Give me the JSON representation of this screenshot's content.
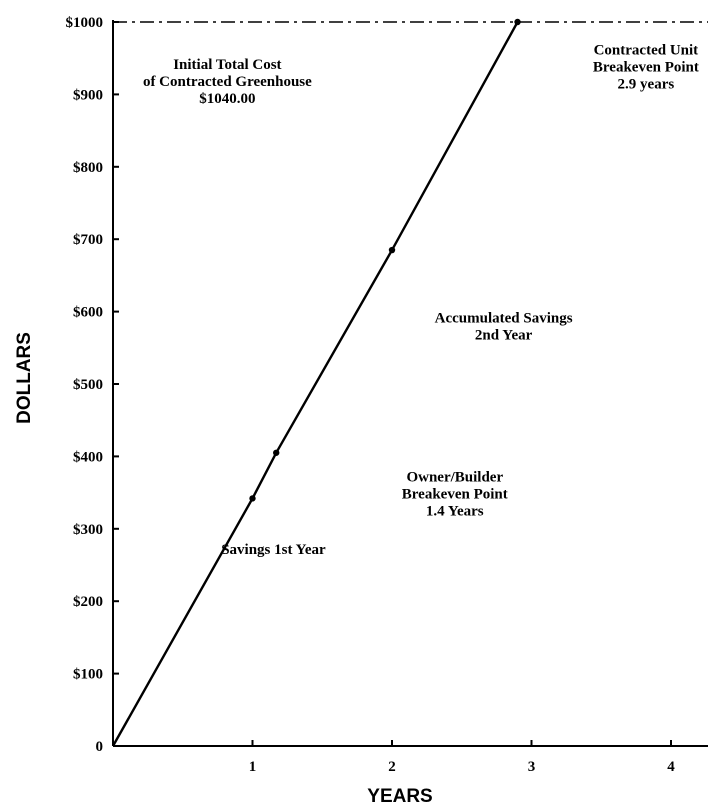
{
  "chart_data": {
    "type": "line",
    "xlabel": "YEARS",
    "ylabel": "DOLLARS",
    "xlim": [
      0,
      4.45
    ],
    "ylim": [
      0,
      1000
    ],
    "x_ticks": [
      "1",
      "2",
      "3",
      "4"
    ],
    "y_ticks": [
      "0",
      "$100",
      "$200",
      "$300",
      "$400",
      "$500",
      "$600",
      "$700",
      "$800",
      "$900",
      "$1000"
    ],
    "grid": false,
    "series": [
      {
        "x": [
          0,
          1,
          1.17,
          2,
          2.9
        ],
        "y": [
          0,
          342,
          405,
          685,
          1000
        ]
      }
    ],
    "reference_line": {
      "y": 1000,
      "style": "dash-dot"
    },
    "annotations": [
      {
        "lines": [
          "Initial Total Cost",
          "of Contracted Greenhouse",
          "$1040.00"
        ],
        "x": 0.82,
        "y": 935
      },
      {
        "lines": [
          "Contracted Unit",
          "Breakeven Point",
          "2.9 years"
        ],
        "x": 3.82,
        "y": 955
      },
      {
        "lines": [
          "Accumulated Savings",
          "2nd Year"
        ],
        "x": 2.8,
        "y": 585
      },
      {
        "lines": [
          "Owner/Builder",
          "Breakeven Point",
          "1.4 Years"
        ],
        "x": 2.45,
        "y": 365
      },
      {
        "lines": [
          "Savings 1st Year"
        ],
        "x": 1.15,
        "y": 265
      }
    ]
  }
}
